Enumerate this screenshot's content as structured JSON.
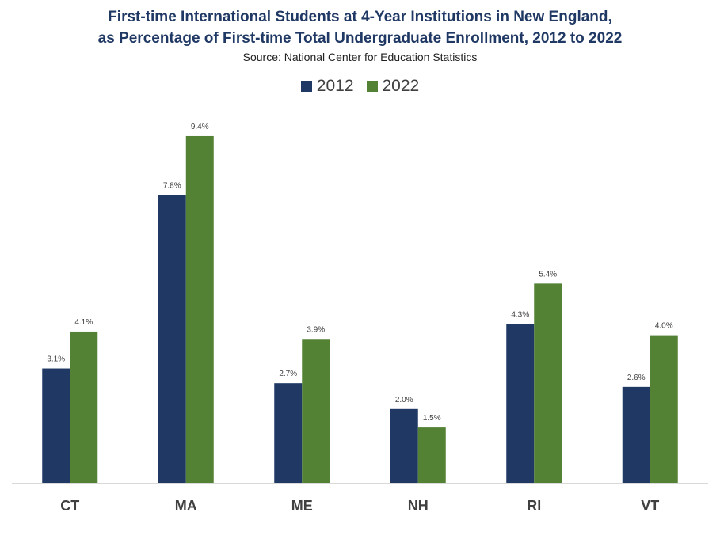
{
  "chart_data": {
    "type": "bar",
    "title": "First-time International Students at 4-Year Institutions in New England,",
    "subtitle": "as Percentage of First-time Total Undergraduate Enrollment, 2012 to 2022",
    "source": "Source: National Center for Education Statistics",
    "categories": [
      "CT",
      "MA",
      "ME",
      "NH",
      "RI",
      "VT"
    ],
    "series": [
      {
        "name": "2012",
        "color": "#1f3864",
        "values": [
          3.1,
          7.8,
          2.7,
          2.0,
          4.3,
          2.6
        ],
        "labels": [
          "3.1%",
          "7.8%",
          "2.7%",
          "2.0%",
          "4.3%",
          "2.6%"
        ]
      },
      {
        "name": "2022",
        "color": "#548235",
        "values": [
          4.1,
          9.4,
          3.9,
          1.5,
          5.4,
          4.0
        ],
        "labels": [
          "4.1%",
          "9.4%",
          "3.9%",
          "1.5%",
          "5.4%",
          "4.0%"
        ]
      }
    ],
    "xlabel": "",
    "ylabel": "",
    "ylim": [
      0,
      10
    ],
    "grid": false,
    "legend_position": "top-center"
  }
}
